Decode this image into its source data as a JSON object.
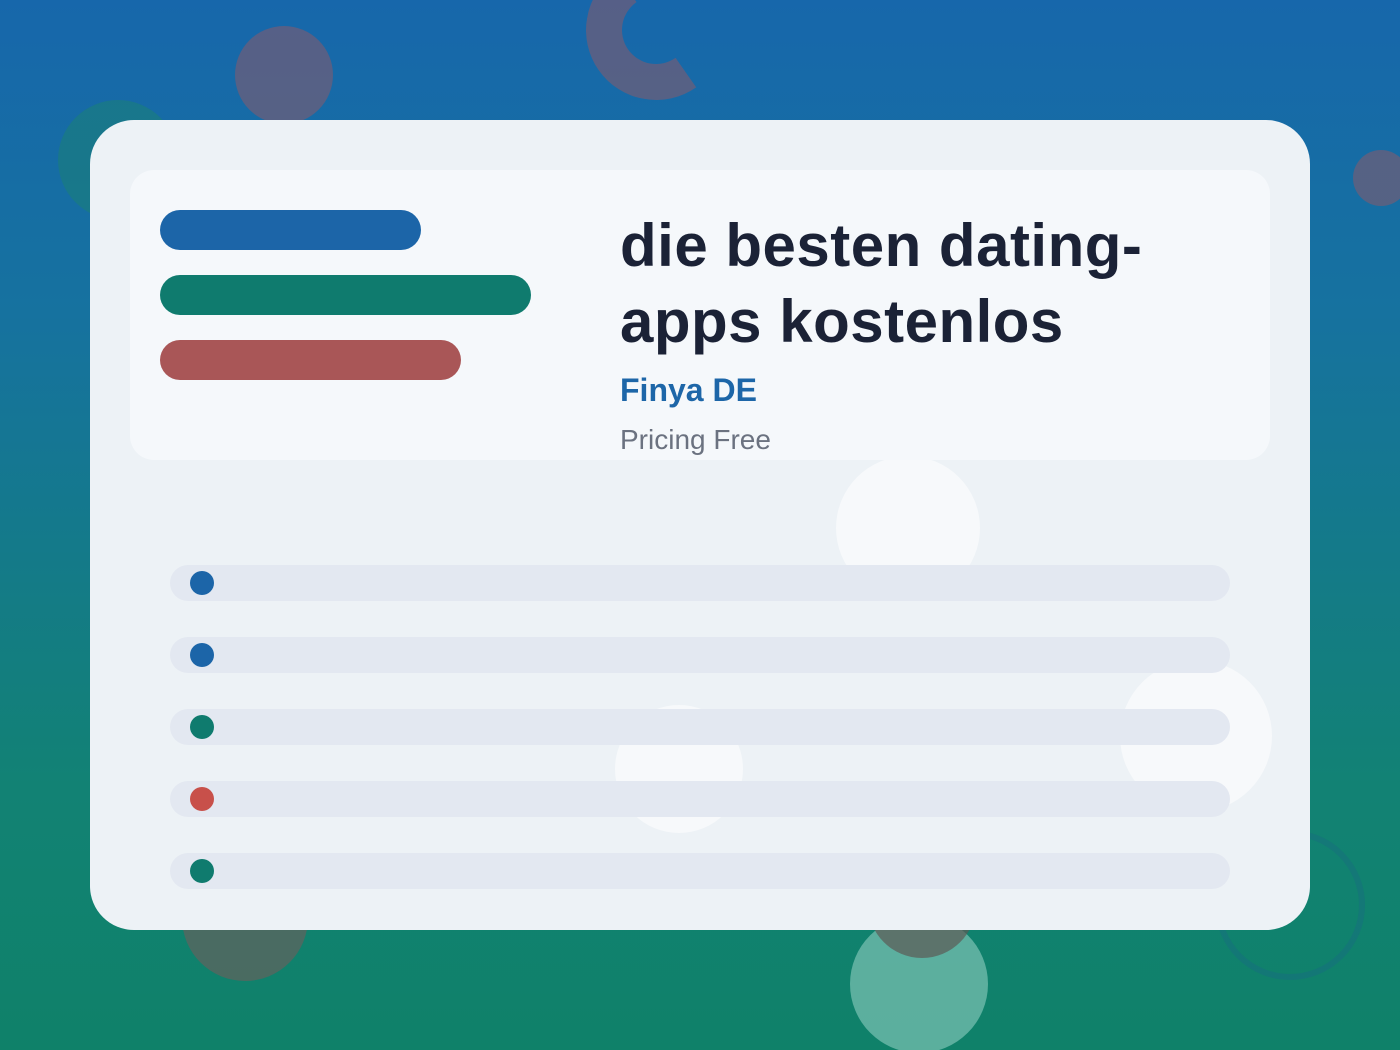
{
  "colors": {
    "blue": "#1c65a8",
    "teal": "#0f7b6e",
    "red": "#a95657",
    "dot_red": "#c8504a"
  },
  "hero": {
    "title": "die besten dating-apps kostenlos",
    "subtitle": "Finya DE",
    "pricing": "Pricing Free",
    "bars": [
      {
        "color": "#1c65a8"
      },
      {
        "color": "#0f7b6e"
      },
      {
        "color": "#a95657"
      }
    ]
  },
  "list": {
    "rows": [
      {
        "dot_color": "#1c65a8"
      },
      {
        "dot_color": "#1c65a8"
      },
      {
        "dot_color": "#0f7b6e"
      },
      {
        "dot_color": "#c8504a"
      },
      {
        "dot_color": "#0f7b6e"
      }
    ]
  }
}
